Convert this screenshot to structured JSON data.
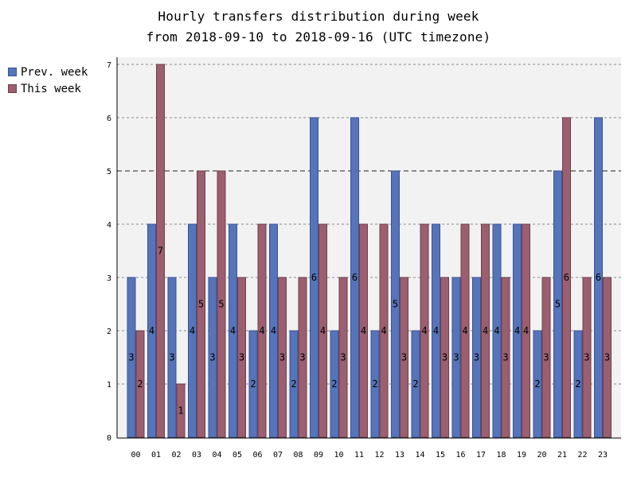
{
  "chart_data": {
    "type": "bar",
    "title": "Hourly transfers distribution during week",
    "subtitle": "from 2018-09-10 to 2018-09-16 (UTC timezone)",
    "categories": [
      "00",
      "01",
      "02",
      "03",
      "04",
      "05",
      "06",
      "07",
      "08",
      "09",
      "10",
      "11",
      "12",
      "13",
      "14",
      "15",
      "16",
      "17",
      "18",
      "19",
      "20",
      "21",
      "22",
      "23"
    ],
    "series": [
      {
        "name": "Prev. week",
        "color": "#5674b9",
        "values": [
          3,
          4,
          3,
          4,
          3,
          4,
          2,
          4,
          2,
          6,
          2,
          6,
          2,
          5,
          2,
          4,
          3,
          3,
          4,
          4,
          2,
          5,
          2,
          6
        ]
      },
      {
        "name": "This week",
        "color": "#9b5f6f",
        "values": [
          2,
          7,
          1,
          5,
          5,
          3,
          4,
          3,
          3,
          4,
          3,
          4,
          4,
          3,
          4,
          3,
          4,
          4,
          3,
          4,
          3,
          6,
          3,
          3
        ]
      }
    ],
    "ylim": [
      0,
      7
    ],
    "yticks": [
      0,
      1,
      2,
      3,
      4,
      5,
      6,
      7
    ],
    "reference_line": 5,
    "grid": true,
    "legend": "top-left"
  }
}
